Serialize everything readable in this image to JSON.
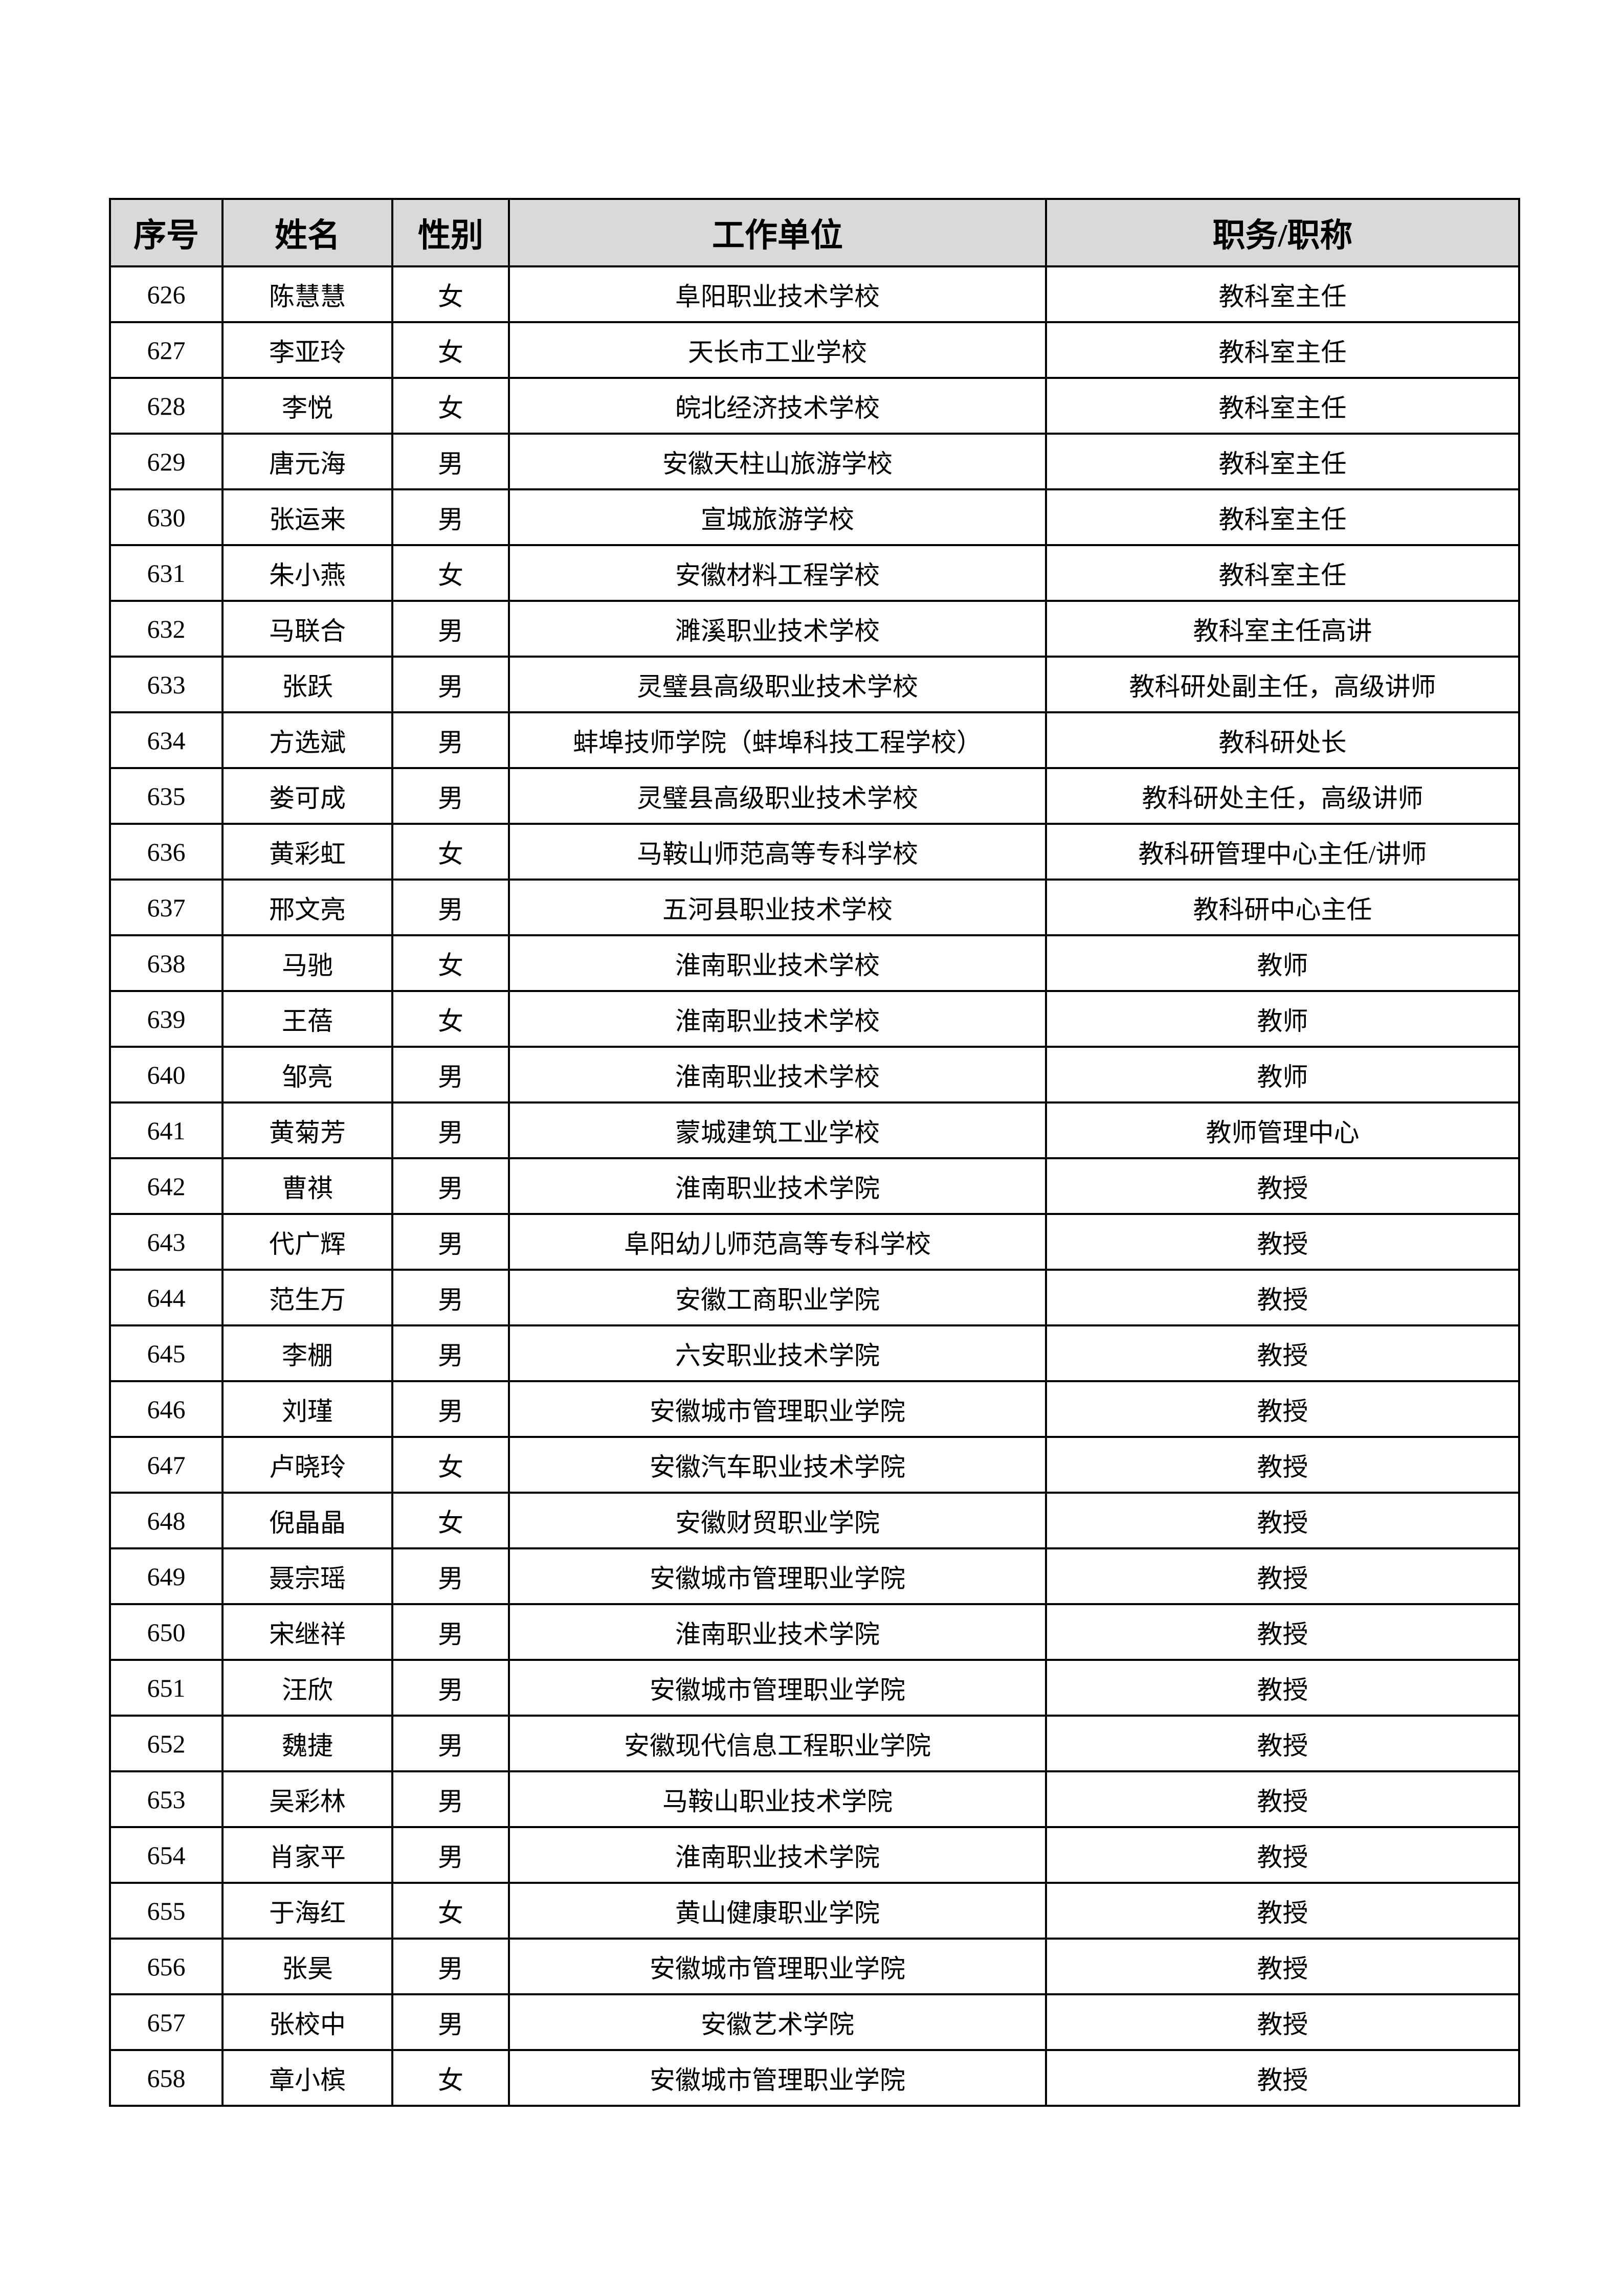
{
  "table": {
    "headers": [
      "序号",
      "姓名",
      "性别",
      "工作单位",
      "职务/职称"
    ],
    "rows": [
      [
        "626",
        "陈慧慧",
        "女",
        "阜阳职业技术学校",
        "教科室主任"
      ],
      [
        "627",
        "李亚玲",
        "女",
        "天长市工业学校",
        "教科室主任"
      ],
      [
        "628",
        "李悦",
        "女",
        "皖北经济技术学校",
        "教科室主任"
      ],
      [
        "629",
        "唐元海",
        "男",
        "安徽天柱山旅游学校",
        "教科室主任"
      ],
      [
        "630",
        "张运来",
        "男",
        "宣城旅游学校",
        "教科室主任"
      ],
      [
        "631",
        "朱小燕",
        "女",
        "安徽材料工程学校",
        "教科室主任"
      ],
      [
        "632",
        "马联合",
        "男",
        "濉溪职业技术学校",
        "教科室主任高讲"
      ],
      [
        "633",
        "张跃",
        "男",
        "灵璧县高级职业技术学校",
        "教科研处副主任，高级讲师"
      ],
      [
        "634",
        "方选斌",
        "男",
        "蚌埠技师学院（蚌埠科技工程学校）",
        "教科研处长"
      ],
      [
        "635",
        "娄可成",
        "男",
        "灵璧县高级职业技术学校",
        "教科研处主任，高级讲师"
      ],
      [
        "636",
        "黄彩虹",
        "女",
        "马鞍山师范高等专科学校",
        "教科研管理中心主任/讲师"
      ],
      [
        "637",
        "邢文亮",
        "男",
        "五河县职业技术学校",
        "教科研中心主任"
      ],
      [
        "638",
        "马驰",
        "女",
        "淮南职业技术学校",
        "教师"
      ],
      [
        "639",
        "王蓓",
        "女",
        "淮南职业技术学校",
        "教师"
      ],
      [
        "640",
        "邹亮",
        "男",
        "淮南职业技术学校",
        "教师"
      ],
      [
        "641",
        "黄菊芳",
        "男",
        "蒙城建筑工业学校",
        "教师管理中心"
      ],
      [
        "642",
        "曹祺",
        "男",
        "淮南职业技术学院",
        "教授"
      ],
      [
        "643",
        "代广辉",
        "男",
        "阜阳幼儿师范高等专科学校",
        "教授"
      ],
      [
        "644",
        "范生万",
        "男",
        "安徽工商职业学院",
        "教授"
      ],
      [
        "645",
        "李棚",
        "男",
        "六安职业技术学院",
        "教授"
      ],
      [
        "646",
        "刘瑾",
        "男",
        "安徽城市管理职业学院",
        "教授"
      ],
      [
        "647",
        "卢晓玲",
        "女",
        "安徽汽车职业技术学院",
        "教授"
      ],
      [
        "648",
        "倪晶晶",
        "女",
        "安徽财贸职业学院",
        "教授"
      ],
      [
        "649",
        "聂宗瑶",
        "男",
        "安徽城市管理职业学院",
        "教授"
      ],
      [
        "650",
        "宋继祥",
        "男",
        "淮南职业技术学院",
        "教授"
      ],
      [
        "651",
        "汪欣",
        "男",
        "安徽城市管理职业学院",
        "教授"
      ],
      [
        "652",
        "魏捷",
        "男",
        "安徽现代信息工程职业学院",
        "教授"
      ],
      [
        "653",
        "吴彩林",
        "男",
        "马鞍山职业技术学院",
        "教授"
      ],
      [
        "654",
        "肖家平",
        "男",
        "淮南职业技术学院",
        "教授"
      ],
      [
        "655",
        "于海红",
        "女",
        "黄山健康职业学院",
        "教授"
      ],
      [
        "656",
        "张昊",
        "男",
        "安徽城市管理职业学院",
        "教授"
      ],
      [
        "657",
        "张校中",
        "男",
        "安徽艺术学院",
        "教授"
      ],
      [
        "658",
        "章小槟",
        "女",
        "安徽城市管理职业学院",
        "教授"
      ]
    ]
  },
  "colors": {
    "header_bg": "#d9d9d9",
    "border": "#000000"
  }
}
